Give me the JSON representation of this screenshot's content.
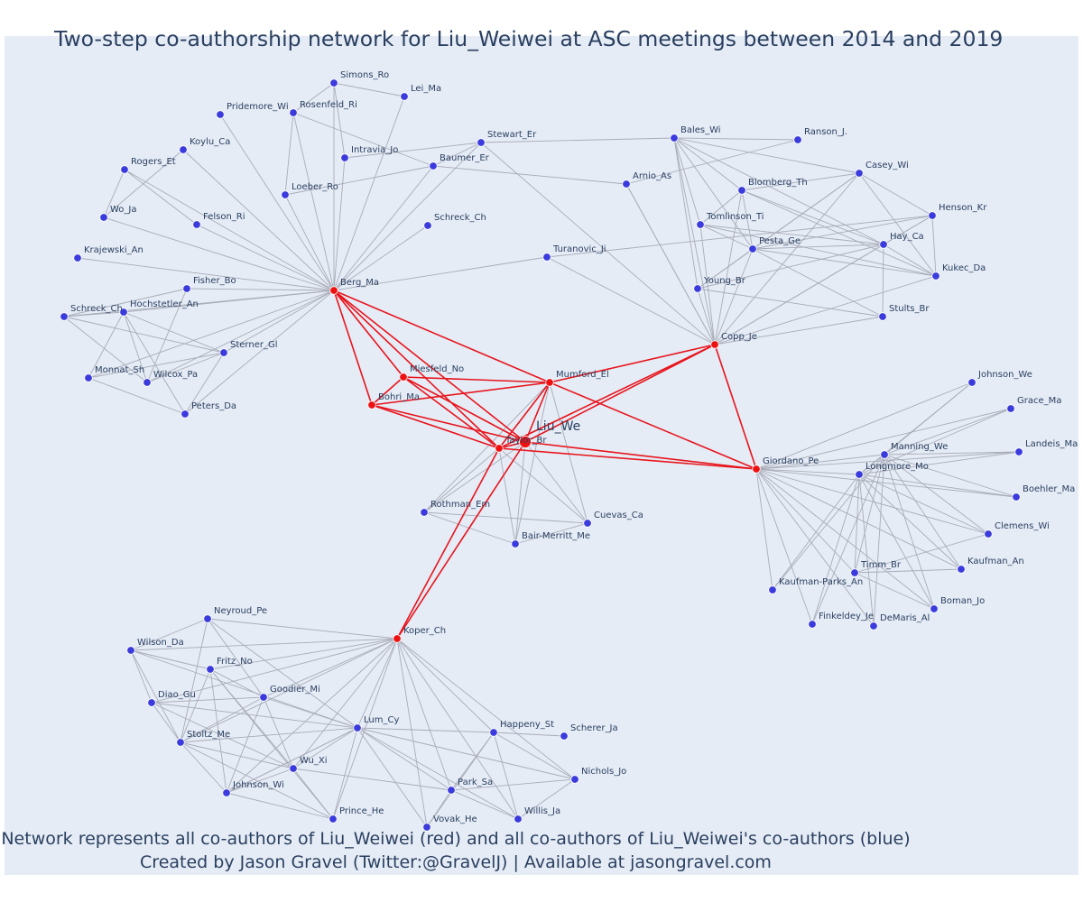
{
  "title": "Two-step co-authorship network for Liu_Weiwei at ASC meetings between 2014 and 2019",
  "caption": {
    "line1": "Network represents all co-authors of Liu_Weiwei (red) and all co-authors of Liu_Weiwei's co-authors (blue)",
    "line2": "Created by Jason Gravel (Twitter:@GravelJ) | Available at jasongravel.com"
  },
  "colors": {
    "background": "#e5ecf6",
    "direct_node": "#ee1111",
    "indirect_node": "#3b3bdd",
    "direct_edge": "#e8141c",
    "indirect_edge": "#a9acb8",
    "text": "#2a3f5f"
  },
  "focal": {
    "id": "Liu_We",
    "label": "Liu_We"
  },
  "nodes": [
    {
      "id": "Liu_We",
      "label": "",
      "group": "focal"
    },
    {
      "id": "Taylor_Br",
      "label": "Taylor_Br",
      "group": "direct"
    },
    {
      "id": "Berg_Ma",
      "label": "Berg_Ma",
      "group": "direct"
    },
    {
      "id": "Miesfeld_No",
      "label": "Miesfeld_No",
      "group": "direct"
    },
    {
      "id": "Mumford_El",
      "label": "Mumford_El",
      "group": "direct"
    },
    {
      "id": "Bohri_Ma",
      "label": "Bohri_Ma",
      "group": "direct"
    },
    {
      "id": "Copp_Je",
      "label": "Copp_Je",
      "group": "direct"
    },
    {
      "id": "Giordano_Pe",
      "label": "Giordano_Pe",
      "group": "direct"
    },
    {
      "id": "Koper_Ch",
      "label": "Koper_Ch",
      "group": "direct"
    },
    {
      "id": "Simons_Ro",
      "label": "Simons_Ro",
      "group": "indirect"
    },
    {
      "id": "Lei_Ma",
      "label": "Lei_Ma",
      "group": "indirect"
    },
    {
      "id": "Pridemore_Wi",
      "label": "Pridemore_Wi",
      "group": "indirect"
    },
    {
      "id": "Rosenfeld_Ri",
      "label": "Rosenfeld_Ri",
      "group": "indirect"
    },
    {
      "id": "Koylu_Ca",
      "label": "Koylu_Ca",
      "group": "indirect"
    },
    {
      "id": "Intravia_Jo",
      "label": "Intravia_Jo",
      "group": "indirect"
    },
    {
      "id": "Rogers_Et",
      "label": "Rogers_Et",
      "group": "indirect"
    },
    {
      "id": "Stewart_Er",
      "label": "Stewart_Er",
      "group": "indirect"
    },
    {
      "id": "Baumer_Er",
      "label": "Baumer_Er",
      "group": "indirect"
    },
    {
      "id": "Loeber_Ro",
      "label": "Loeber_Ro",
      "group": "indirect"
    },
    {
      "id": "Wo_Ja",
      "label": "Wo_Ja",
      "group": "indirect"
    },
    {
      "id": "Felson_Ri",
      "label": "Felson_Ri",
      "group": "indirect"
    },
    {
      "id": "Krajewski_An",
      "label": "Krajewski_An",
      "group": "indirect"
    },
    {
      "id": "Schreck_Ch_1",
      "label": "Schreck_Ch",
      "group": "indirect"
    },
    {
      "id": "Fisher_Bo",
      "label": "Fisher_Bo",
      "group": "indirect"
    },
    {
      "id": "Schreck_Ch_2",
      "label": "Schreck_Ch",
      "group": "indirect"
    },
    {
      "id": "Hochstetler_An",
      "label": "Hochstetler_An",
      "group": "indirect"
    },
    {
      "id": "Sterner_Gl",
      "label": "Sterner_Gl",
      "group": "indirect"
    },
    {
      "id": "Monnat_Sh",
      "label": "Monnat_Sh",
      "group": "indirect"
    },
    {
      "id": "Wilcox_Pa",
      "label": "Wilcox_Pa",
      "group": "indirect"
    },
    {
      "id": "Peters_Da",
      "label": "Peters_Da",
      "group": "indirect"
    },
    {
      "id": "Bales_Wi",
      "label": "Bales_Wi",
      "group": "indirect"
    },
    {
      "id": "Ranson_J.",
      "label": "Ranson_J.",
      "group": "indirect"
    },
    {
      "id": "Arnio_As",
      "label": "Arnio_As",
      "group": "indirect"
    },
    {
      "id": "Casey_Wi",
      "label": "Casey_Wi",
      "group": "indirect"
    },
    {
      "id": "Blomberg_Th",
      "label": "Blomberg_Th",
      "group": "indirect"
    },
    {
      "id": "Henson_Kr",
      "label": "Henson_Kr",
      "group": "indirect"
    },
    {
      "id": "Tomlinson_Ti",
      "label": "Tomlinson_Ti",
      "group": "indirect"
    },
    {
      "id": "Pesta_Ge",
      "label": "Pesta_Ge",
      "group": "indirect"
    },
    {
      "id": "Hay_Ca",
      "label": "Hay_Ca",
      "group": "indirect"
    },
    {
      "id": "Kukec_Da",
      "label": "Kukec_Da",
      "group": "indirect"
    },
    {
      "id": "Turanovic_Ji",
      "label": "Turanovic_Ji",
      "group": "indirect"
    },
    {
      "id": "Young_Br",
      "label": "Young_Br",
      "group": "indirect"
    },
    {
      "id": "Stults_Br",
      "label": "Stults_Br",
      "group": "indirect"
    },
    {
      "id": "Rothman_Em",
      "label": "Rothman_Em",
      "group": "indirect"
    },
    {
      "id": "Cuevas_Ca",
      "label": "Cuevas_Ca",
      "group": "indirect"
    },
    {
      "id": "Bair-Merritt_Me",
      "label": "Bair-Merritt_Me",
      "group": "indirect"
    },
    {
      "id": "Johnson_We",
      "label": "Johnson_We",
      "group": "indirect"
    },
    {
      "id": "Grace_Ma",
      "label": "Grace_Ma",
      "group": "indirect"
    },
    {
      "id": "Manning_We",
      "label": "Manning_We",
      "group": "indirect"
    },
    {
      "id": "Landeis_Ma",
      "label": "Landeis_Ma",
      "group": "indirect"
    },
    {
      "id": "Longmore_Mo",
      "label": "Longmore_Mo",
      "group": "indirect"
    },
    {
      "id": "Boehler_Ma",
      "label": "Boehler_Ma",
      "group": "indirect"
    },
    {
      "id": "Clemens_Wi",
      "label": "Clemens_Wi",
      "group": "indirect"
    },
    {
      "id": "Kaufman_An",
      "label": "Kaufman_An",
      "group": "indirect"
    },
    {
      "id": "Timm_Br",
      "label": "Timm_Br",
      "group": "indirect"
    },
    {
      "id": "Kaufman-Parks_An",
      "label": "Kaufman-Parks_An",
      "group": "indirect"
    },
    {
      "id": "Boman_Jo",
      "label": "Boman_Jo",
      "group": "indirect"
    },
    {
      "id": "Finkeldey_Je",
      "label": "Finkeldey_Je",
      "group": "indirect"
    },
    {
      "id": "DeMaris_Al",
      "label": "DeMaris_Al",
      "group": "indirect"
    },
    {
      "id": "Neyroud_Pe",
      "label": "Neyroud_Pe",
      "group": "indirect"
    },
    {
      "id": "Wilson_Da",
      "label": "Wilson_Da",
      "group": "indirect"
    },
    {
      "id": "Fritz_No",
      "label": "Fritz_No",
      "group": "indirect"
    },
    {
      "id": "Goodier_Mi",
      "label": "Goodier_Mi",
      "group": "indirect"
    },
    {
      "id": "Diao_Gu",
      "label": "Diao_Gu",
      "group": "indirect"
    },
    {
      "id": "Lum_Cy",
      "label": "Lum_Cy",
      "group": "indirect"
    },
    {
      "id": "Happeny_St",
      "label": "Happeny_St",
      "group": "indirect"
    },
    {
      "id": "Scherer_Ja",
      "label": "Scherer_Ja",
      "group": "indirect"
    },
    {
      "id": "Stoltz_Me",
      "label": "Stoltz_Me",
      "group": "indirect"
    },
    {
      "id": "Wu_Xi",
      "label": "Wu_Xi",
      "group": "indirect"
    },
    {
      "id": "Nichols_Jo",
      "label": "Nichols_Jo",
      "group": "indirect"
    },
    {
      "id": "Johnson_Wi",
      "label": "Johnson_Wi",
      "group": "indirect"
    },
    {
      "id": "Park_Sa",
      "label": "Park_Sa",
      "group": "indirect"
    },
    {
      "id": "Prince_He",
      "label": "Prince_He",
      "group": "indirect"
    },
    {
      "id": "Willis_Ja",
      "label": "Willis_Ja",
      "group": "indirect"
    },
    {
      "id": "Vovak_He",
      "label": "Vovak_He",
      "group": "indirect"
    }
  ]
}
